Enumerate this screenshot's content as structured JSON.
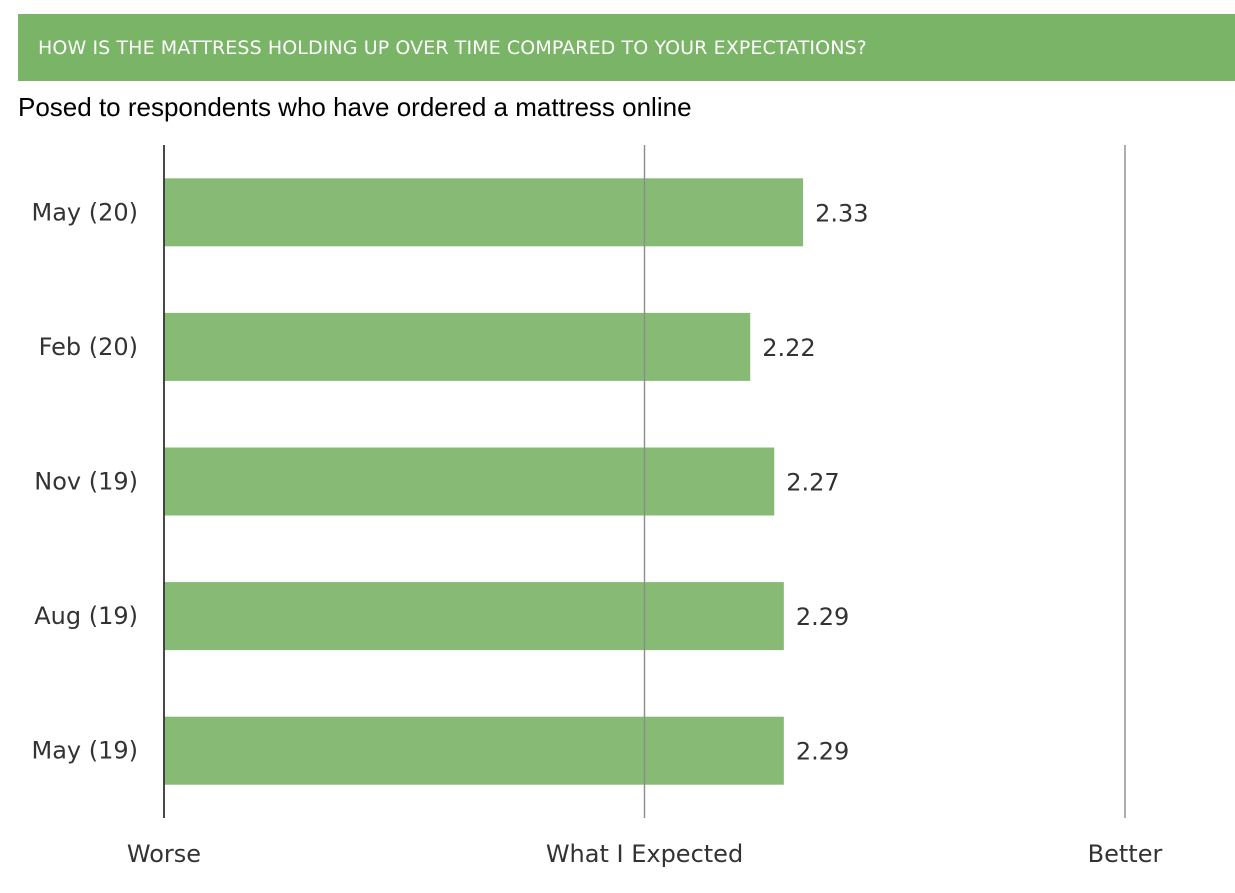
{
  "header": {
    "title": "HOW IS THE MATTRESS HOLDING UP OVER TIME COMPARED TO YOUR EXPECTATIONS?"
  },
  "subtitle": "Posed to respondents who have ordered a mattress online",
  "colors": {
    "header_bg": "#7ab466",
    "bar_fill": "#7ab466",
    "gridline": "#8c8c8c",
    "axis": "#333333"
  },
  "chart_data": {
    "type": "bar",
    "orientation": "horizontal",
    "categories": [
      "May (20)",
      "Feb (20)",
      "Nov (19)",
      "Aug (19)",
      "May (19)"
    ],
    "values": [
      2.33,
      2.22,
      2.27,
      2.29,
      2.29
    ],
    "data_labels": [
      "2.33",
      "2.22",
      "2.27",
      "2.29",
      "2.29"
    ],
    "xlim": [
      1,
      3
    ],
    "x_ticks": [
      {
        "value": 1,
        "label": "Worse"
      },
      {
        "value": 2,
        "label": "What I Expected"
      },
      {
        "value": 3,
        "label": "Better"
      }
    ],
    "grid": true
  }
}
